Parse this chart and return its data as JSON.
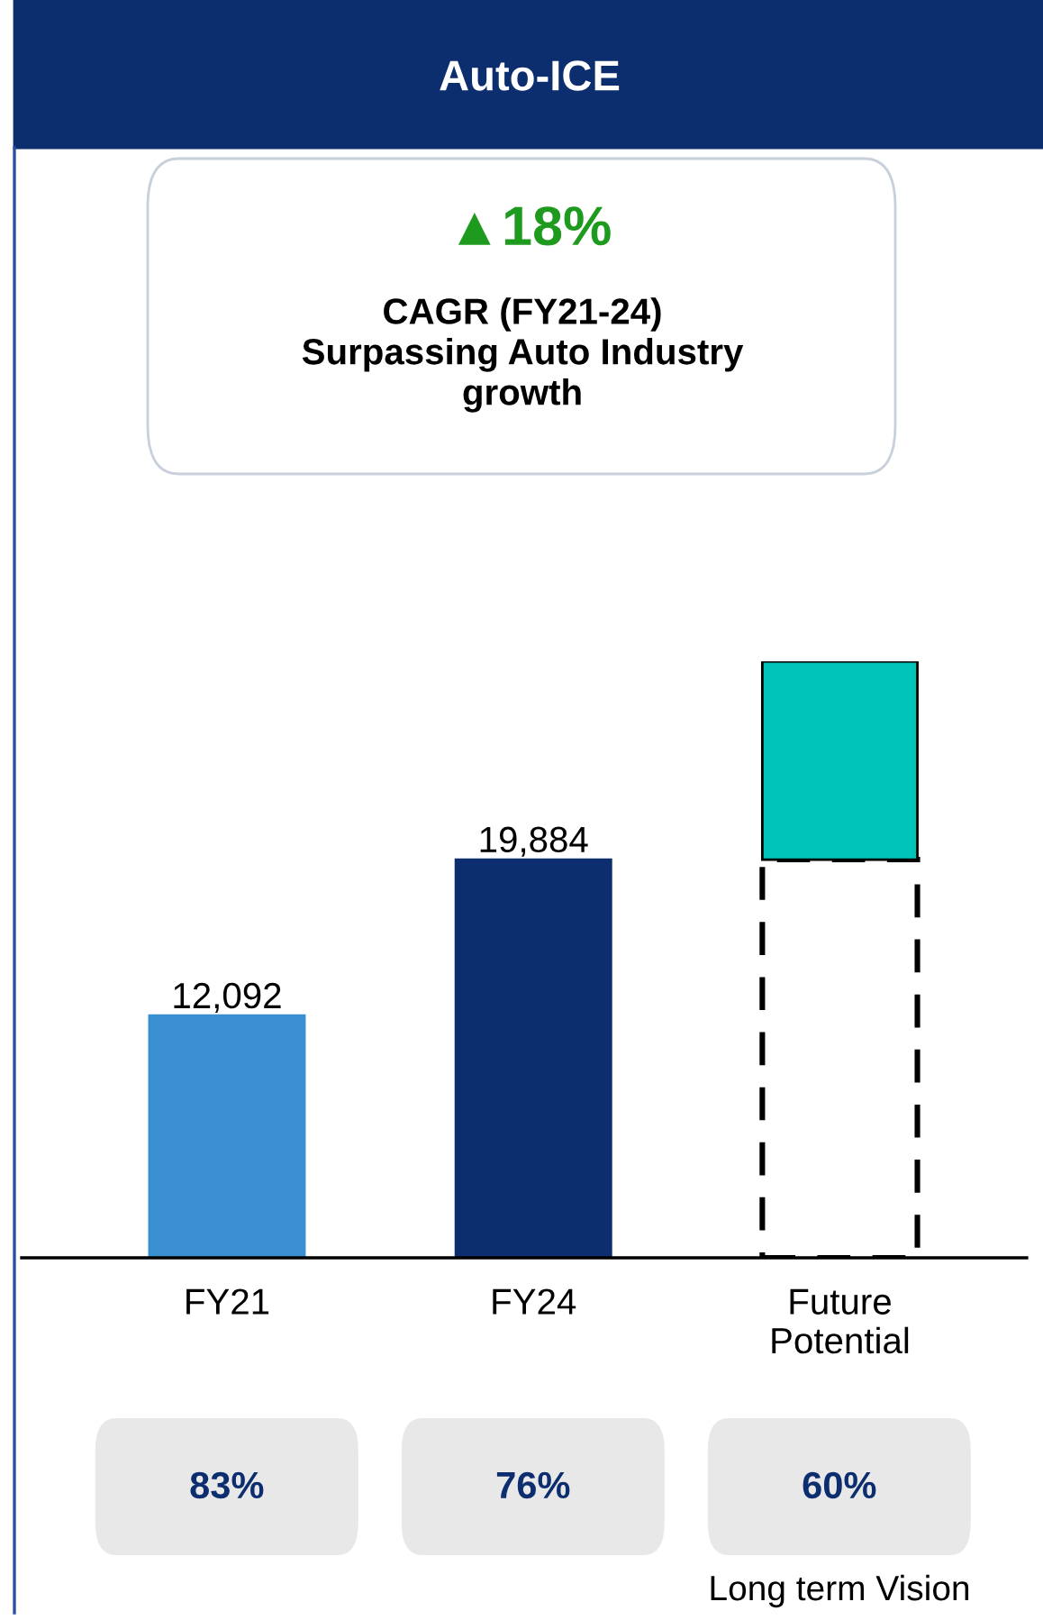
{
  "chart_data": {
    "type": "bar",
    "title": "Auto-ICE",
    "stacked": true,
    "categories": [
      "FY21",
      "FY24",
      "Future\nPotential"
    ],
    "series": [
      {
        "colors": [
          "#3a8fd0",
          "#0c2d6e",
          "#ffffff"
        ],
        "values": [
          12092,
          19884,
          null
        ],
        "value_labels": [
          "12,092",
          "19,884",
          null
        ]
      },
      {
        "color": "#ffffff",
        "line_style": "dashed",
        "values": [
          null,
          null,
          19884
        ]
      },
      {
        "color": "#00c3b8",
        "values": [
          null,
          null,
          9900
        ]
      }
    ],
    "annotations": [
      "▲18%",
      "CAGR (FY21-24)\nSurpassing Auto Industry\ngrowth",
      "83%",
      "76%",
      "60%",
      "Long term Vision"
    ],
    "grid": false,
    "legend": false,
    "tick_labels": "x"
  }
}
